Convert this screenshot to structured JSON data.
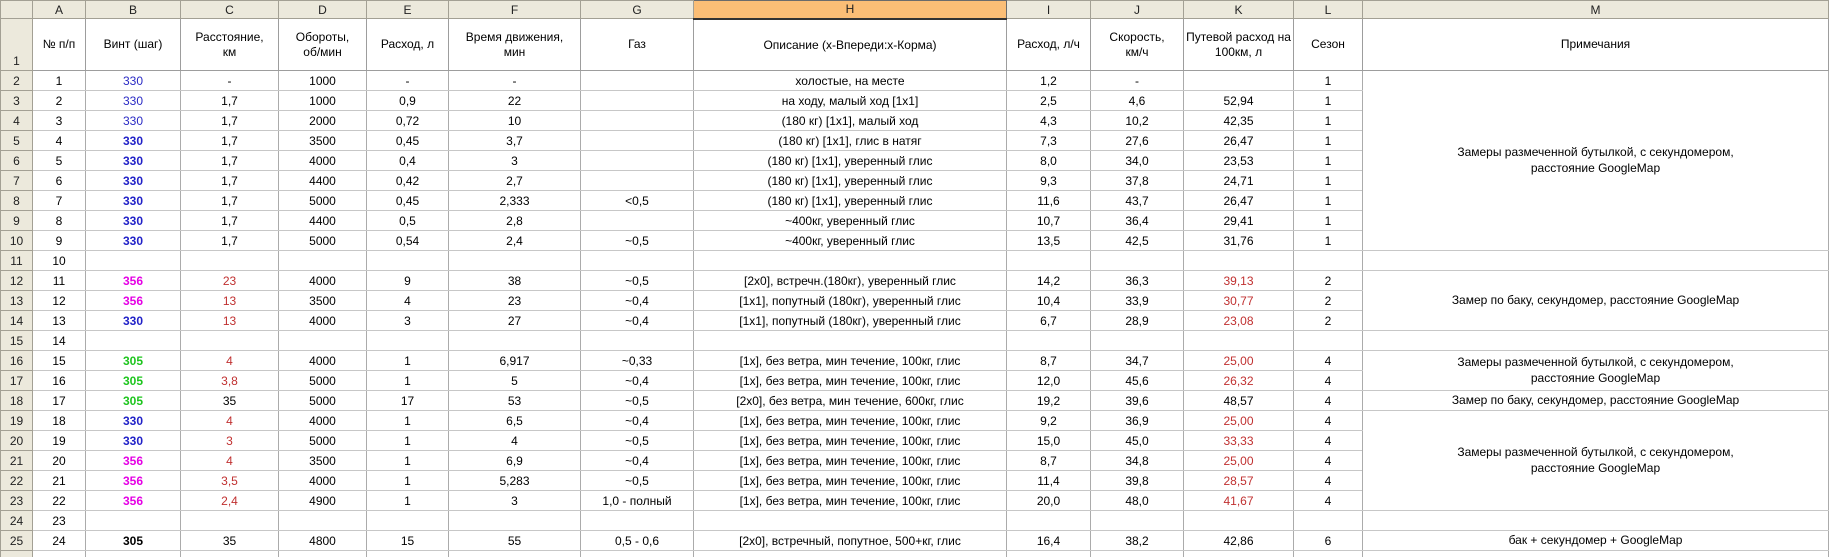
{
  "sheet": {
    "selected_column": "H",
    "header_row_number": "1",
    "column_letters": [
      "",
      "A",
      "B",
      "C",
      "D",
      "E",
      "F",
      "G",
      "H",
      "I",
      "J",
      "K",
      "L",
      "M"
    ],
    "headers": [
      "№ п/п",
      "Винт (шаг)",
      "Расстояние,\nкм",
      "Обороты,\nоб/мин",
      "Расход, л",
      "Время движения,\nмин",
      "Газ",
      "Описание (х-Впереди:х-Корма)",
      "Расход, л/ч",
      "Скорость,\nкм/ч",
      "Путевой расход на\n100км, л",
      "Сезон",
      "Примечания"
    ],
    "colors": {
      "selected_column_header": "#FBBE76",
      "red_value": "#C03030",
      "blue_value": "#2A2AC4",
      "magenta_value": "#E500E5",
      "green_value": "#1DC51D"
    },
    "rows": [
      {
        "n": "2",
        "a": "1",
        "b": "330",
        "bs": "blue",
        "c": "-",
        "d": "1000",
        "e": "-",
        "f": "-",
        "g": "",
        "h": "холостые, на месте",
        "i": "1,2",
        "j": "-",
        "k": "",
        "l": "1"
      },
      {
        "n": "3",
        "a": "2",
        "b": "330",
        "bs": "blue",
        "c": "1,7",
        "d": "1000",
        "e": "0,9",
        "f": "22",
        "g": "",
        "h": "на ходу, малый ход [1х1]",
        "i": "2,5",
        "j": "4,6",
        "k": "52,94",
        "l": "1"
      },
      {
        "n": "4",
        "a": "3",
        "b": "330",
        "bs": "blue",
        "c": "1,7",
        "d": "2000",
        "e": "0,72",
        "f": "10",
        "g": "",
        "h": "(180 кг) [1х1], малый ход",
        "i": "4,3",
        "j": "10,2",
        "k": "42,35",
        "l": "1"
      },
      {
        "n": "5",
        "a": "4",
        "b": "330",
        "bs": "blue-b",
        "c": "1,7",
        "d": "3500",
        "e": "0,45",
        "f": "3,7",
        "g": "",
        "h": "(180 кг) [1х1], глис в натяг",
        "i": "7,3",
        "j": "27,6",
        "k": "26,47",
        "l": "1"
      },
      {
        "n": "6",
        "a": "5",
        "b": "330",
        "bs": "blue-b",
        "c": "1,7",
        "d": "4000",
        "e": "0,4",
        "f": "3",
        "g": "",
        "h": "(180 кг) [1х1], уверенный глис",
        "i": "8,0",
        "j": "34,0",
        "k": "23,53",
        "l": "1"
      },
      {
        "n": "7",
        "a": "6",
        "b": "330",
        "bs": "blue-b",
        "c": "1,7",
        "d": "4400",
        "e": "0,42",
        "f": "2,7",
        "g": "",
        "h": "(180 кг) [1х1], уверенный глис",
        "i": "9,3",
        "j": "37,8",
        "k": "24,71",
        "l": "1"
      },
      {
        "n": "8",
        "a": "7",
        "b": "330",
        "bs": "blue-b",
        "c": "1,7",
        "d": "5000",
        "e": "0,45",
        "f": "2,333",
        "g": "<0,5",
        "h": "(180 кг) [1х1], уверенный глис",
        "i": "11,6",
        "j": "43,7",
        "k": "26,47",
        "l": "1"
      },
      {
        "n": "9",
        "a": "8",
        "b": "330",
        "bs": "blue-b",
        "c": "1,7",
        "d": "4400",
        "e": "0,5",
        "f": "2,8",
        "g": "",
        "h": "~400кг, уверенный глис",
        "i": "10,7",
        "j": "36,4",
        "k": "29,41",
        "l": "1"
      },
      {
        "n": "10",
        "a": "9",
        "b": "330",
        "bs": "blue-b",
        "c": "1,7",
        "d": "5000",
        "e": "0,54",
        "f": "2,4",
        "g": "~0,5",
        "h": "~400кг, уверенный глис",
        "i": "13,5",
        "j": "42,5",
        "k": "31,76",
        "l": "1"
      },
      {
        "n": "11",
        "a": "10",
        "b": "",
        "c": "",
        "d": "",
        "e": "",
        "f": "",
        "g": "",
        "h": "",
        "i": "",
        "j": "",
        "k": "",
        "l": ""
      },
      {
        "n": "12",
        "a": "11",
        "b": "356",
        "bs": "mag-b",
        "c": "23",
        "cs": "red",
        "d": "4000",
        "e": "9",
        "f": "38",
        "g": "~0,5",
        "h": "[2х0], встречн.(180кг), уверенный глис",
        "i": "14,2",
        "j": "36,3",
        "k": "39,13",
        "ks": "red",
        "l": "2"
      },
      {
        "n": "13",
        "a": "12",
        "b": "356",
        "bs": "mag-b",
        "c": "13",
        "cs": "red",
        "d": "3500",
        "e": "4",
        "f": "23",
        "g": "~0,4",
        "h": "[1х1], попутный (180кг), уверенный глис",
        "i": "10,4",
        "j": "33,9",
        "k": "30,77",
        "ks": "red",
        "l": "2"
      },
      {
        "n": "14",
        "a": "13",
        "b": "330",
        "bs": "blue-b",
        "c": "13",
        "cs": "red",
        "d": "4000",
        "e": "3",
        "f": "27",
        "g": "~0,4",
        "h": "[1х1], попутный (180кг), уверенный глис",
        "i": "6,7",
        "j": "28,9",
        "k": "23,08",
        "ks": "red",
        "l": "2"
      },
      {
        "n": "15",
        "a": "14",
        "b": "",
        "c": "",
        "d": "",
        "e": "",
        "f": "",
        "g": "",
        "h": "",
        "i": "",
        "j": "",
        "k": "",
        "l": ""
      },
      {
        "n": "16",
        "a": "15",
        "b": "305",
        "bs": "grn-b",
        "c": "4",
        "cs": "red",
        "d": "4000",
        "e": "1",
        "f": "6,917",
        "g": "~0,33",
        "h": "[1х], без ветра, мин течение, 100кг, глис",
        "i": "8,7",
        "j": "34,7",
        "k": "25,00",
        "ks": "red",
        "l": "4"
      },
      {
        "n": "17",
        "a": "16",
        "b": "305",
        "bs": "grn-b",
        "c": "3,8",
        "cs": "red",
        "d": "5000",
        "e": "1",
        "f": "5",
        "g": "~0,4",
        "h": "[1х], без ветра, мин течение, 100кг, глис",
        "i": "12,0",
        "j": "45,6",
        "k": "26,32",
        "ks": "red",
        "l": "4"
      },
      {
        "n": "18",
        "a": "17",
        "b": "305",
        "bs": "grn-b",
        "c": "35",
        "d": "5000",
        "e": "17",
        "f": "53",
        "g": "~0,5",
        "h": "[2х0], без ветра, мин течение, 600кг, глис",
        "i": "19,2",
        "j": "39,6",
        "k": "48,57",
        "l": "4"
      },
      {
        "n": "19",
        "a": "18",
        "b": "330",
        "bs": "blue-b",
        "c": "4",
        "cs": "red",
        "d": "4000",
        "e": "1",
        "f": "6,5",
        "g": "~0,4",
        "h": "[1х], без ветра, мин течение, 100кг, глис",
        "i": "9,2",
        "j": "36,9",
        "k": "25,00",
        "ks": "red",
        "l": "4"
      },
      {
        "n": "20",
        "a": "19",
        "b": "330",
        "bs": "blue-b",
        "c": "3",
        "cs": "red",
        "d": "5000",
        "e": "1",
        "f": "4",
        "g": "~0,5",
        "h": "[1х], без ветра, мин течение, 100кг, глис",
        "i": "15,0",
        "j": "45,0",
        "k": "33,33",
        "ks": "red",
        "l": "4"
      },
      {
        "n": "21",
        "a": "20",
        "b": "356",
        "bs": "mag-b",
        "c": "4",
        "cs": "red",
        "d": "3500",
        "e": "1",
        "f": "6,9",
        "g": "~0,4",
        "h": "[1х], без ветра, мин течение, 100кг, глис",
        "i": "8,7",
        "j": "34,8",
        "k": "25,00",
        "ks": "red",
        "l": "4"
      },
      {
        "n": "22",
        "a": "21",
        "b": "356",
        "bs": "mag-b",
        "c": "3,5",
        "cs": "red",
        "d": "4000",
        "e": "1",
        "f": "5,283",
        "g": "~0,5",
        "h": "[1х], без ветра, мин течение, 100кг, глис",
        "i": "11,4",
        "j": "39,8",
        "k": "28,57",
        "ks": "red",
        "l": "4"
      },
      {
        "n": "23",
        "a": "22",
        "b": "356",
        "bs": "mag-b",
        "c": "2,4",
        "cs": "red",
        "d": "4900",
        "e": "1",
        "f": "3",
        "g": "1,0 - полный",
        "h": "[1х], без ветра, мин течение, 100кг, глис",
        "i": "20,0",
        "j": "48,0",
        "k": "41,67",
        "ks": "red",
        "l": "4"
      },
      {
        "n": "24",
        "a": "23",
        "b": "",
        "c": "",
        "d": "",
        "e": "",
        "f": "",
        "g": "",
        "h": "",
        "i": "",
        "j": "",
        "k": "",
        "l": ""
      },
      {
        "n": "25",
        "a": "24",
        "b": "305",
        "bs": "blk-b",
        "c": "35",
        "d": "4800",
        "e": "15",
        "f": "55",
        "g": "0,5 - 0,6",
        "h": "[2х0], встречный, попутное, 500+кг, глис",
        "i": "16,4",
        "j": "38,2",
        "k": "42,86",
        "l": "6"
      }
    ],
    "notes": [
      {
        "row": "2",
        "span": 9,
        "text": "Замеры размеченной бутылкой, с секундомером, расстояние GoogleMap"
      },
      {
        "row": "11",
        "span": 1,
        "text": ""
      },
      {
        "row": "12",
        "span": 3,
        "text": "Замер по баку, секундомер, расстояние GoogleMap"
      },
      {
        "row": "15",
        "span": 1,
        "text": ""
      },
      {
        "row": "16",
        "span": 2,
        "text": "Замеры размеченной бутылкой, с секундомером, расстояние GoogleMap"
      },
      {
        "row": "18",
        "span": 1,
        "text": "Замер по баку, секундомер, расстояние GoogleMap"
      },
      {
        "row": "19",
        "span": 5,
        "text": "Замеры размеченной бутылкой, с секундомером, расстояние GoogleMap"
      },
      {
        "row": "24",
        "span": 1,
        "text": ""
      },
      {
        "row": "25",
        "span": 1,
        "text": "бак + секундомер + GoogleMap"
      }
    ]
  }
}
